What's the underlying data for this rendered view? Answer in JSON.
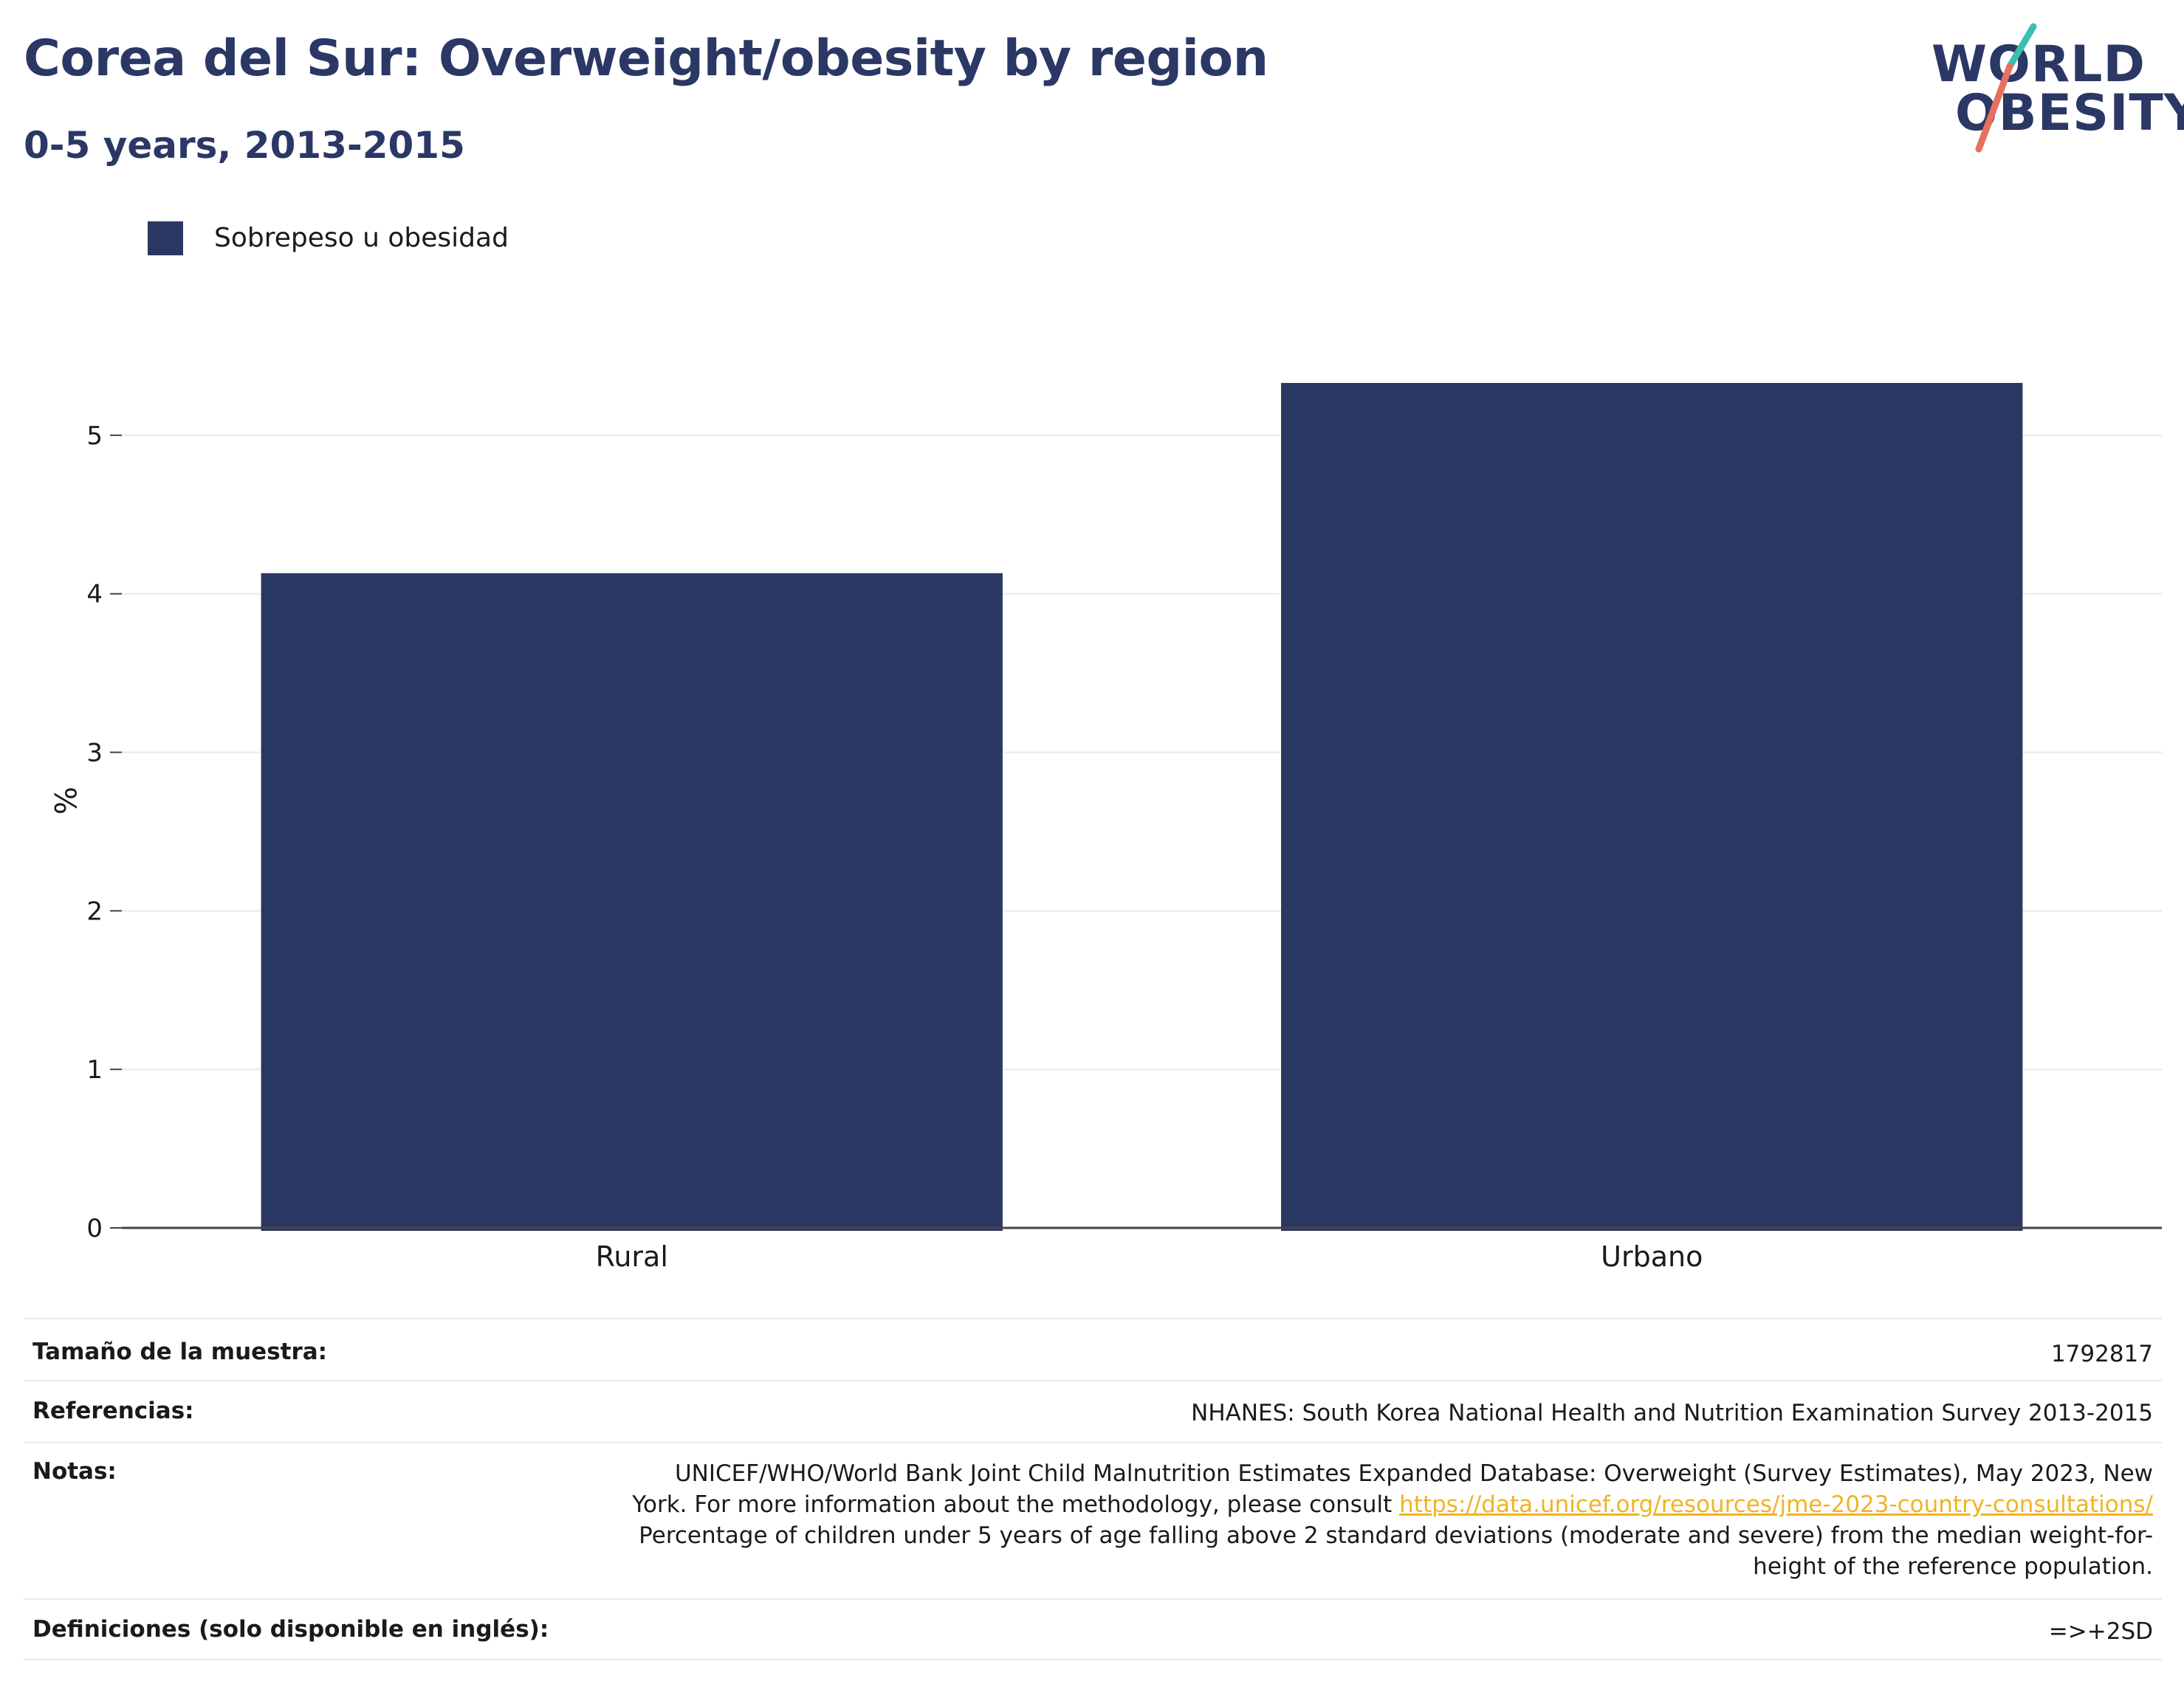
{
  "header": {
    "title": "Corea del Sur: Overweight/obesity by region",
    "subtitle": "0-5 years, 2013-2015"
  },
  "logo": {
    "line1": "WORLD",
    "line2": "OBESITY",
    "colors": {
      "teal": "#3bbfb2",
      "coral": "#e8705f"
    }
  },
  "legend": {
    "label": "Sobrepeso u obesidad"
  },
  "colors": {
    "bar": "#2b3763",
    "grid": "#e9e9ec",
    "axis": "#444444",
    "title": "#2b3765",
    "link": "#f0b323"
  },
  "chart_data": {
    "type": "bar",
    "categories": [
      "Rural",
      "Urbano"
    ],
    "series": [
      {
        "name": "Sobrepeso u obesidad",
        "values": [
          4.13,
          5.33
        ]
      }
    ],
    "ylabel": "%",
    "xlabel": "",
    "ylim": [
      0,
      5.8
    ],
    "yticks": [
      0,
      1,
      2,
      3,
      4,
      5
    ],
    "grid": true,
    "legend_position": "top-left"
  },
  "info_table": {
    "sample_size_label": "Tamaño de la muestra:",
    "sample_size_value": "1792817",
    "references_label": "Referencias:",
    "references_value": "NHANES: South Korea National Health and Nutrition Examination Survey 2013-2015",
    "notes_label": "Notas:",
    "notes_text_1": "UNICEF/WHO/World Bank Joint Child Malnutrition Estimates Expanded Database: Overweight (Survey Estimates), May 2023, New York. For more information about the methodology, please consult ",
    "notes_link": "https://data.unicef.org/resources/jme-2023-country-consultations/",
    "notes_text_2": "Percentage of children under 5 years of age falling above 2 standard deviations (moderate and severe) from the median weight-for-height of the reference population.",
    "definitions_label": "Definiciones (solo disponible en inglés):",
    "definitions_value": "=>+2SD"
  }
}
